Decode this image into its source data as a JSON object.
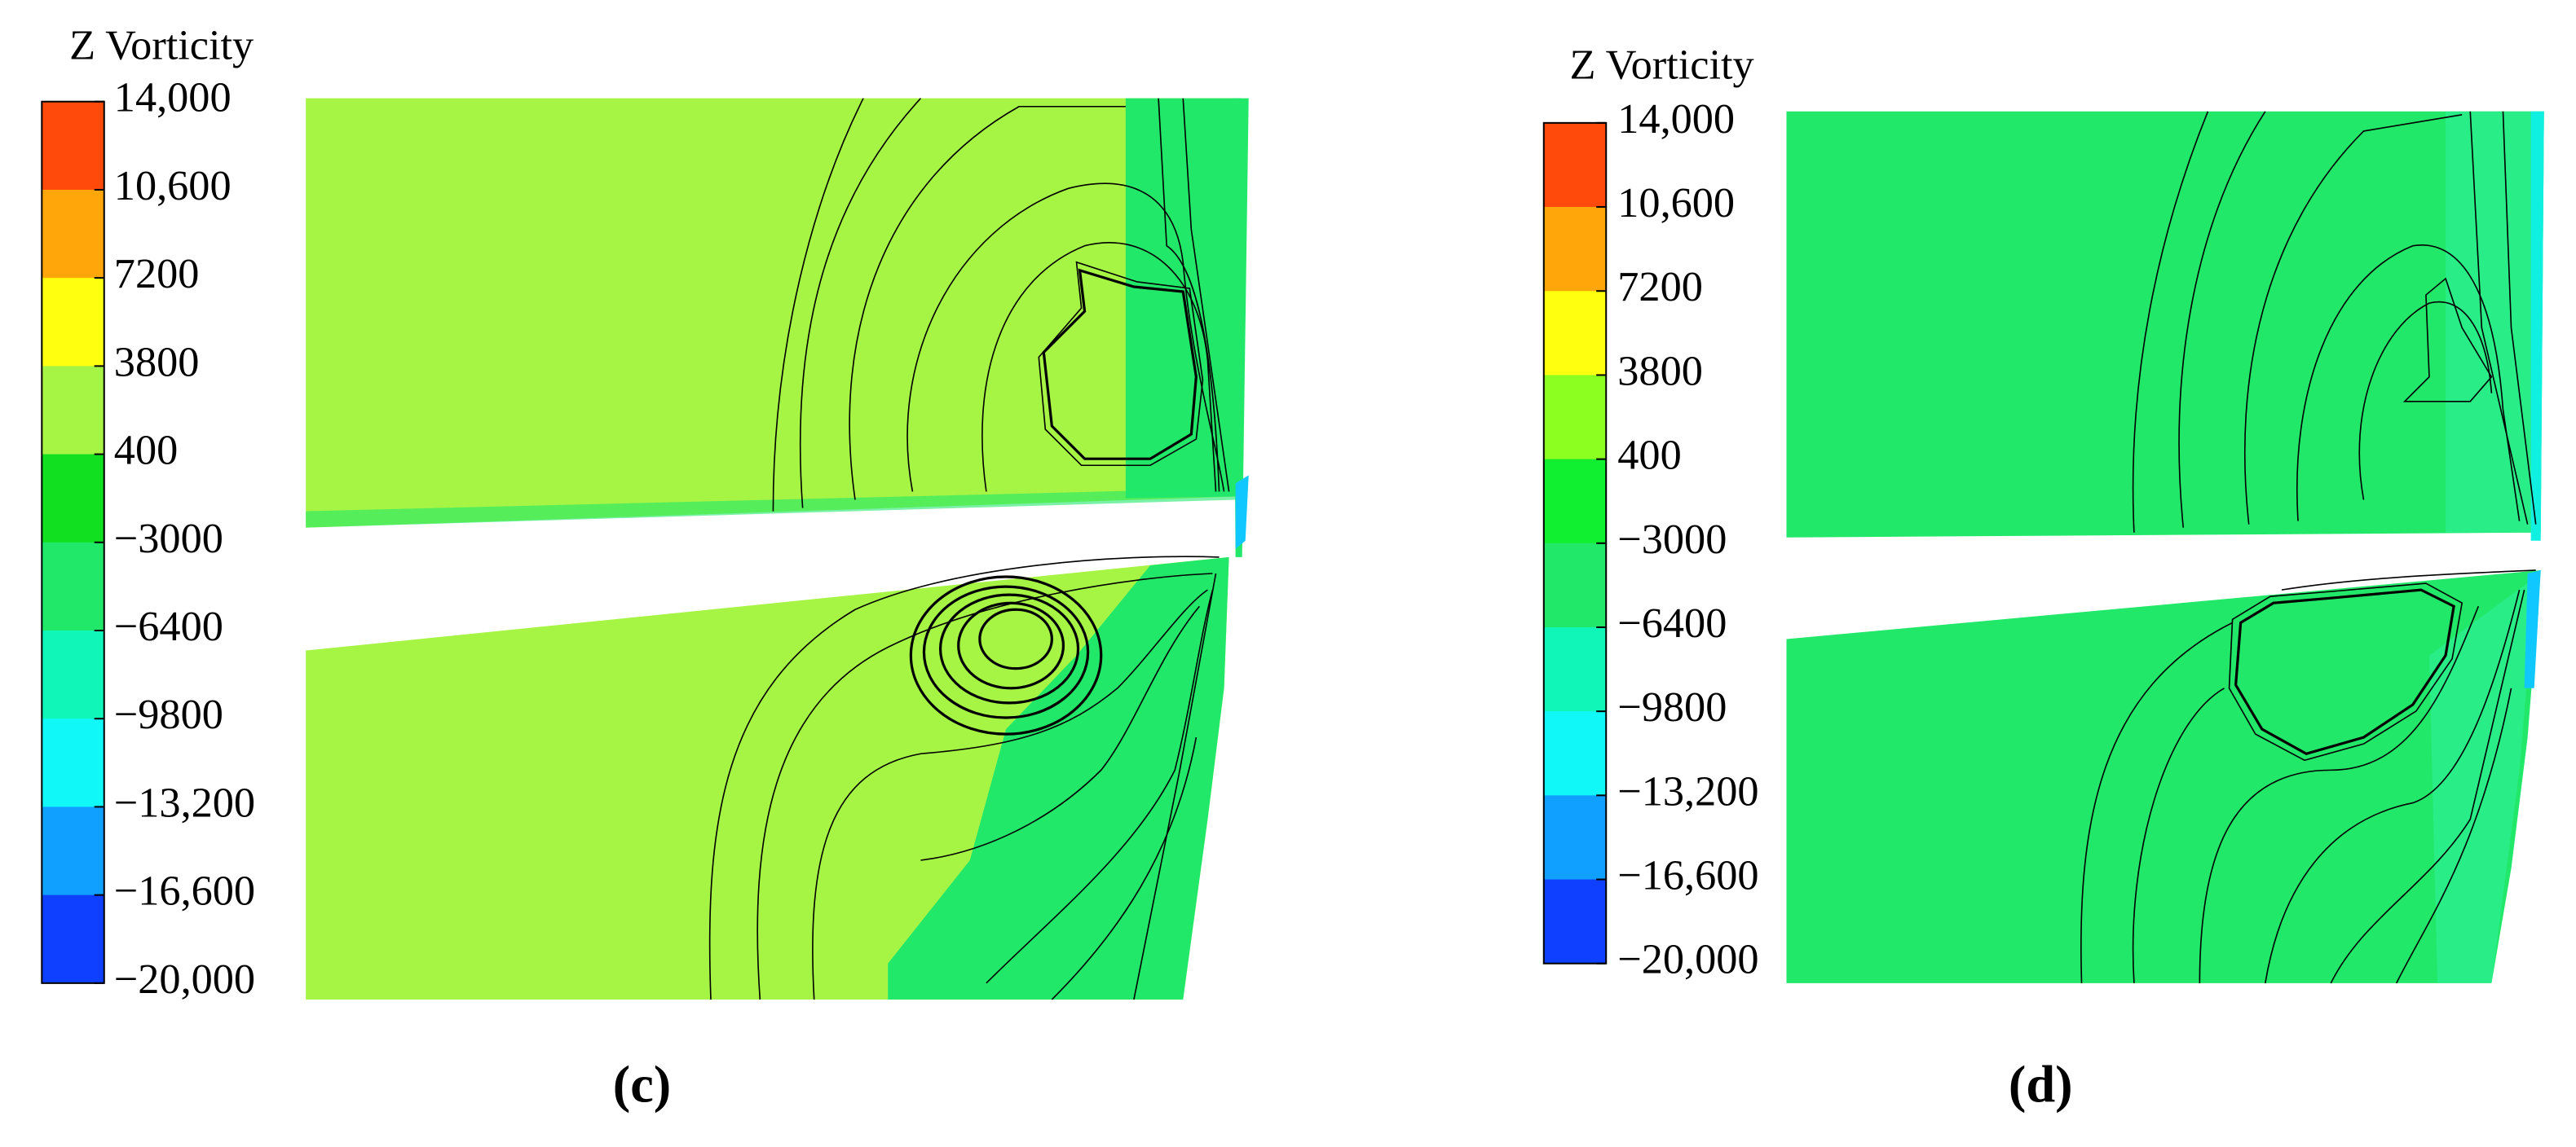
{
  "chart_data": [
    {
      "type": "contour",
      "title": "Z Vorticity",
      "caption": "(c)",
      "clim": [
        -20000,
        14000
      ],
      "cticks": [
        {
          "value": 14000,
          "label": "14,000"
        },
        {
          "value": 10600,
          "label": "10,600"
        },
        7200,
        3800,
        400,
        {
          "value": -3000,
          "label": "−3000"
        },
        {
          "value": -6400,
          "label": "−6400"
        },
        {
          "value": -9800,
          "label": "−9800"
        },
        {
          "value": -13200,
          "label": "−13,200"
        },
        {
          "value": -16600,
          "label": "−16,600"
        },
        {
          "value": -20000,
          "label": "−20,000"
        }
      ],
      "colors": [
        "#ff4a0c",
        "#ffa70a",
        "#ffff10",
        "#a6f545",
        "#10e020",
        "#22e86a",
        "#10f5b8",
        "#10f8f8",
        "#10a0ff",
        "#1040ff"
      ]
    },
    {
      "type": "contour",
      "title": "Z Vorticity",
      "caption": "(d)",
      "clim": [
        -20000,
        14000
      ],
      "cticks": [
        {
          "value": 14000,
          "label": "14,000"
        },
        {
          "value": 10600,
          "label": "10,600"
        },
        7200,
        3800,
        400,
        {
          "value": -3000,
          "label": "−3000"
        },
        {
          "value": -6400,
          "label": "−6400"
        },
        {
          "value": -9800,
          "label": "−9800"
        },
        {
          "value": -13200,
          "label": "−13,200"
        },
        {
          "value": -16600,
          "label": "−16,600"
        },
        {
          "value": -20000,
          "label": "−20,000"
        }
      ],
      "colors": [
        "#ff4a0c",
        "#ffa70a",
        "#ffff10",
        "#8dff20",
        "#10f030",
        "#22e86a",
        "#10f5b8",
        "#10f8f8",
        "#10a0ff",
        "#1040ff"
      ]
    }
  ]
}
